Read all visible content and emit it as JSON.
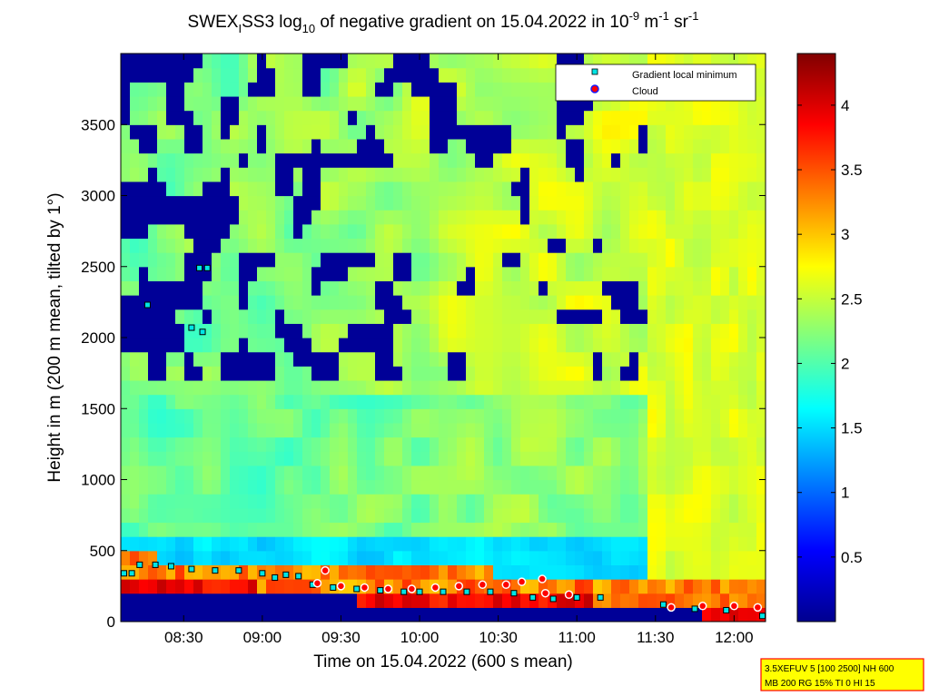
{
  "chart_data": {
    "type": "heatmap",
    "title": {
      "part1": "SWEX",
      "sub1": "I",
      "part2": "SS3 log",
      "sub2": "10",
      "part3": " of negative gradient on 15.04.2022 in 10",
      "sup1": "-9",
      "part4": " m",
      "sup2": "-1",
      "part5": " sr",
      "sup3": "-1"
    },
    "xlabel": "Time on 15.04.2022 (600 s mean)",
    "ylabel": "Height in m (200 m mean, tilted by 1°)",
    "x_range_hours": [
      8.1,
      12.2
    ],
    "x_ticks": [
      {
        "value": 8.5,
        "label": "08:30"
      },
      {
        "value": 9.0,
        "label": "09:00"
      },
      {
        "value": 9.5,
        "label": "09:30"
      },
      {
        "value": 10.0,
        "label": "10:00"
      },
      {
        "value": 10.5,
        "label": "10:30"
      },
      {
        "value": 11.0,
        "label": "11:00"
      },
      {
        "value": 11.5,
        "label": "11:30"
      },
      {
        "value": 12.0,
        "label": "12:00"
      }
    ],
    "ylim": [
      0,
      4000
    ],
    "y_ticks": [
      0,
      500,
      1000,
      1500,
      2000,
      2500,
      3000,
      3500
    ],
    "colorbar": {
      "range": [
        0,
        4.4
      ],
      "ticks": [
        0.5,
        1,
        1.5,
        2,
        2.5,
        3,
        3.5,
        4
      ],
      "colormap": "jet"
    },
    "legend": {
      "placement": "top-right",
      "entries": [
        {
          "label": "Gradient local minimum",
          "marker": "square",
          "color": "#00e5e5"
        },
        {
          "label": "Cloud",
          "marker": "circle",
          "color": "#ff0000"
        }
      ]
    },
    "gradient_local_minimum_points": [
      [
        8.12,
        340
      ],
      [
        8.17,
        340
      ],
      [
        8.22,
        400
      ],
      [
        8.32,
        400
      ],
      [
        8.42,
        390
      ],
      [
        8.55,
        370
      ],
      [
        8.7,
        360
      ],
      [
        8.85,
        360
      ],
      [
        9.0,
        340
      ],
      [
        9.08,
        310
      ],
      [
        9.15,
        330
      ],
      [
        9.23,
        320
      ],
      [
        9.32,
        260
      ],
      [
        9.45,
        240
      ],
      [
        9.6,
        230
      ],
      [
        9.75,
        220
      ],
      [
        9.9,
        210
      ],
      [
        10.0,
        210
      ],
      [
        10.15,
        210
      ],
      [
        10.3,
        210
      ],
      [
        10.45,
        210
      ],
      [
        10.6,
        200
      ],
      [
        10.72,
        170
      ],
      [
        10.85,
        160
      ],
      [
        11.0,
        170
      ],
      [
        11.15,
        170
      ],
      [
        11.55,
        120
      ],
      [
        11.75,
        90
      ],
      [
        11.95,
        80
      ],
      [
        12.18,
        40
      ],
      [
        8.27,
        2230
      ],
      [
        8.6,
        2490
      ],
      [
        8.65,
        2490
      ],
      [
        8.55,
        2070
      ],
      [
        8.62,
        2040
      ]
    ],
    "cloud_points": [
      [
        9.35,
        270
      ],
      [
        9.5,
        250
      ],
      [
        9.65,
        240
      ],
      [
        9.8,
        230
      ],
      [
        9.95,
        230
      ],
      [
        10.1,
        240
      ],
      [
        10.25,
        250
      ],
      [
        10.4,
        260
      ],
      [
        10.55,
        260
      ],
      [
        10.65,
        280
      ],
      [
        10.8,
        200
      ],
      [
        10.95,
        190
      ],
      [
        11.6,
        100
      ],
      [
        11.8,
        110
      ],
      [
        12.0,
        110
      ],
      [
        12.15,
        100
      ],
      [
        9.4,
        360
      ],
      [
        10.78,
        300
      ]
    ],
    "info_box": {
      "line1": "3.5XEFUV 5 [100 2500] NH 600",
      "line2": "MB 200 RG 15% TI 0 HI 15"
    }
  },
  "colors": {
    "frame": "#000000",
    "info_box_bg": "#ffff00",
    "info_box_border": "#ff0000",
    "minimum_marker": "#00e5e5",
    "cloud_marker": "#ff0000"
  }
}
